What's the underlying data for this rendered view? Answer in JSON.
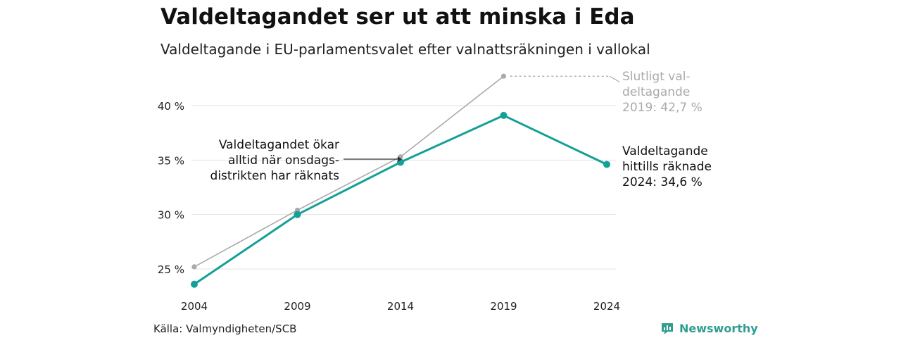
{
  "title": "Valdeltagandet ser ut att minska i Eda",
  "subtitle": "Valdeltagande i EU-parlamentsvalet efter valnattsräkningen i vallokal",
  "source": "Källa: Valmyndigheten/SCB",
  "brand": "Newsworthy",
  "colors": {
    "primary": "#13a096",
    "secondary": "#aaaaaa",
    "grid": "#e3e3e3",
    "brand": "#2f9e8f"
  },
  "chart_data": {
    "type": "line",
    "categories": [
      "2004",
      "2009",
      "2014",
      "2019",
      "2024"
    ],
    "ylim": [
      23,
      44
    ],
    "yticks": [
      25,
      30,
      35,
      40
    ],
    "ytick_labels": [
      "25 %",
      "30 %",
      "35 %",
      "40 %"
    ],
    "grid": true,
    "series": [
      {
        "name": "Slutligt valdeltagande",
        "values": [
          25.2,
          30.4,
          35.3,
          42.7,
          null
        ]
      },
      {
        "name": "Valdeltagande hittills räknade",
        "values": [
          23.6,
          30.0,
          34.8,
          39.1,
          34.6
        ]
      }
    ],
    "annotations": [
      {
        "lines": [
          "Slutligt val-",
          "deltagande",
          "2019: 42,7 %"
        ]
      },
      {
        "lines": [
          "Valdeltagande",
          "hittills räknade",
          "2024: 34,6 %"
        ]
      },
      {
        "lines": [
          "Valdeltagandet ökar",
          "alltid när onsdags-",
          "distrikten har räknats"
        ]
      }
    ]
  }
}
